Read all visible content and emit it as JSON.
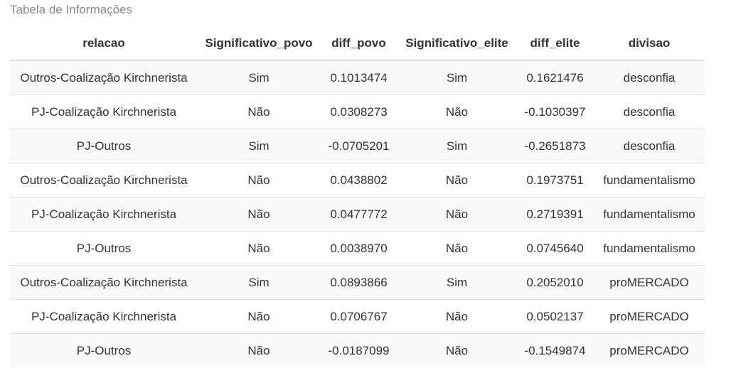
{
  "caption": "Tabela de Informações",
  "table": {
    "headers": [
      "relacao",
      "Significativo_povo",
      "diff_povo",
      "Significativo_elite",
      "diff_elite",
      "divisao"
    ],
    "rows": [
      [
        "Outros-Coalização Kirchnerista",
        "Sim",
        "0.1013474",
        "Sim",
        "0.1621476",
        "desconfia"
      ],
      [
        "PJ-Coalização Kirchnerista",
        "Não",
        "0.0308273",
        "Não",
        "-0.1030397",
        "desconfia"
      ],
      [
        "PJ-Outros",
        "Sim",
        "-0.0705201",
        "Sim",
        "-0.2651873",
        "desconfia"
      ],
      [
        "Outros-Coalização Kirchnerista",
        "Não",
        "0.0438802",
        "Não",
        "0.1973751",
        "fundamentalismo"
      ],
      [
        "PJ-Coalização Kirchnerista",
        "Não",
        "0.0477772",
        "Não",
        "0.2719391",
        "fundamentalismo"
      ],
      [
        "PJ-Outros",
        "Não",
        "0.0038970",
        "Não",
        "0.0745640",
        "fundamentalismo"
      ],
      [
        "Outros-Coalização Kirchnerista",
        "Sim",
        "0.0893866",
        "Sim",
        "0.2052010",
        "proMERCADO"
      ],
      [
        "PJ-Coalização Kirchnerista",
        "Não",
        "0.0706767",
        "Não",
        "0.0502137",
        "proMERCADO"
      ],
      [
        "PJ-Outros",
        "Não",
        "-0.0187099",
        "Não",
        "-0.1549874",
        "proMERCADO"
      ]
    ]
  }
}
